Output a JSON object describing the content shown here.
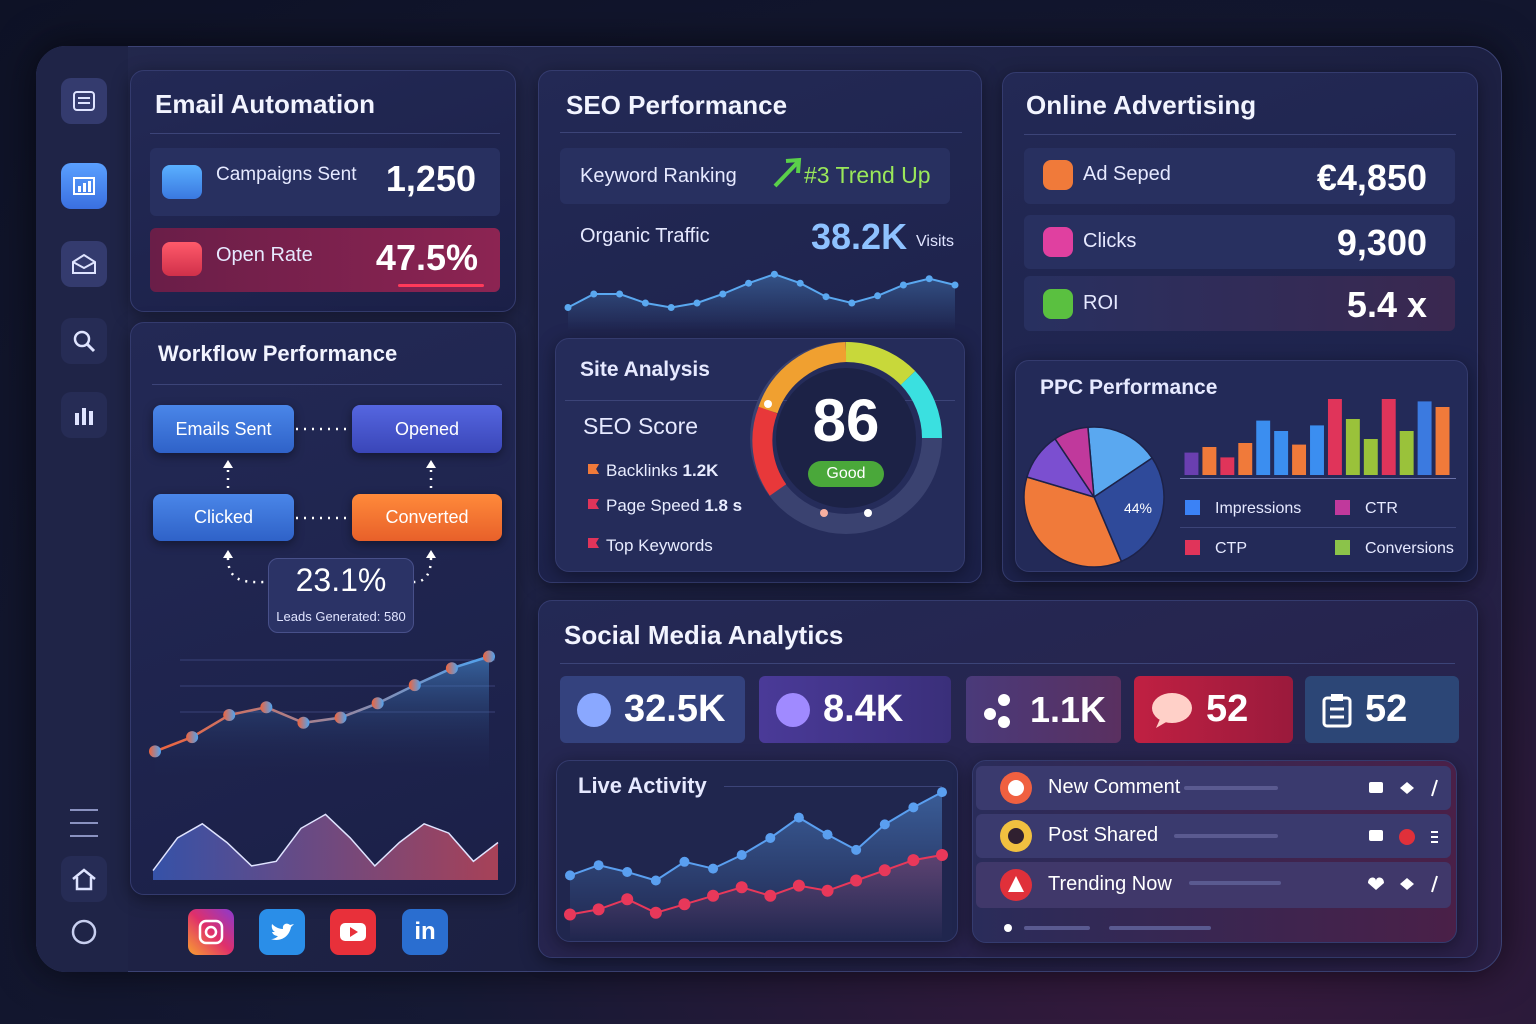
{
  "email": {
    "title": "Email Automation",
    "metrics": [
      {
        "label": "Campaigns Sent",
        "value": "1,250"
      },
      {
        "label": "Open Rate",
        "value": "47.5%"
      }
    ]
  },
  "workflow": {
    "title": "Workflow Performance",
    "nodes": [
      "Emails Sent",
      "Opened",
      "Clicked",
      "Converted"
    ],
    "rate": "23.1%",
    "leads": "Leads Generated: 580",
    "trend": {
      "values": [
        22,
        33,
        50,
        56,
        44,
        48,
        59,
        73,
        86,
        95
      ],
      "ylim": [
        0,
        100
      ],
      "colors": [
        "#f0643c",
        "#4fa3f0"
      ]
    },
    "wave": {
      "values": [
        10,
        45,
        60,
        40,
        15,
        20,
        55,
        70,
        45,
        15,
        40,
        60,
        50,
        20,
        40
      ],
      "ylim": [
        0,
        80
      ],
      "color": "#c0475a"
    }
  },
  "seo": {
    "title": "SEO Performance",
    "keyword_ranking": {
      "label": "Keyword Ranking",
      "value": "#3 Trend Up"
    },
    "organic_traffic": {
      "label": "Organic Traffic",
      "value": "38.2K",
      "unit": "Visits",
      "values": [
        25,
        40,
        40,
        30,
        25,
        30,
        40,
        52,
        62,
        52,
        37,
        30,
        38,
        50,
        57,
        50
      ],
      "ylim": [
        0,
        80
      ],
      "color": "#5aa8f0"
    },
    "site_analysis": {
      "title": "Site Analysis",
      "score_label": "SEO Score",
      "score": "86",
      "status": "Good",
      "rows": [
        {
          "label": "Backlinks",
          "value": "1.2K"
        },
        {
          "label": "Page Speed",
          "value": "1.8 s"
        },
        {
          "label": "Top Keywords"
        }
      ]
    }
  },
  "advertising": {
    "title": "Online Advertising",
    "metrics": [
      {
        "label": "Ad Seped",
        "value": "€4,850"
      },
      {
        "label": "Clicks",
        "value": "9,300"
      },
      {
        "label": "ROI",
        "value": "5.4 x"
      }
    ],
    "ppc": {
      "title": "PPC Performance",
      "bars": {
        "values": [
          28,
          35,
          22,
          40,
          68,
          55,
          38,
          62,
          95,
          70,
          45,
          95,
          55,
          92,
          85
        ],
        "ylim": [
          0,
          100
        ],
        "colors": [
          "#6a3fb0",
          "#f07a3a",
          "#e0345a",
          "#f07a3a",
          "#3b8ef0",
          "#3b8ef0",
          "#f07a3a",
          "#3b8ef0",
          "#e0345a",
          "#9ac23a",
          "#9ac23a",
          "#e0345a",
          "#9ac23a",
          "#3b7ae0",
          "#f07a3a"
        ]
      },
      "pie": {
        "values": [
          17,
          28,
          36,
          11,
          8
        ],
        "colors": [
          "#5aa8f0",
          "#2f4a9a",
          "#f07a3a",
          "#7b4fd0",
          "#c0399c"
        ],
        "label": "44%"
      },
      "legend": [
        {
          "name": "Impressions",
          "color": "#3b82f6"
        },
        {
          "name": "CTR",
          "color": "#c0399c"
        },
        {
          "name": "CTP",
          "color": "#e0345a"
        },
        {
          "name": "Conversions",
          "color": "#8bc34a"
        }
      ]
    }
  },
  "social": {
    "title": "Social Media Analytics",
    "stats": [
      "32.5K",
      "8.4K",
      "1.1K",
      "52",
      "52"
    ],
    "live": {
      "title": "Live Activity",
      "ylim": [
        0,
        100
      ],
      "series": [
        {
          "values": [
            38,
            44,
            40,
            35,
            46,
            42,
            50,
            60,
            72,
            62,
            53,
            68,
            78,
            87
          ],
          "color": "#5a9ff0"
        },
        {
          "values": [
            15,
            18,
            24,
            16,
            21,
            26,
            31,
            26,
            32,
            29,
            35,
            41,
            47,
            50
          ],
          "color": "#e8385a"
        }
      ]
    },
    "activity": [
      "New Comment",
      "Post Shared",
      "Trending Now"
    ]
  },
  "footer": {
    "linkedin": "in"
  }
}
